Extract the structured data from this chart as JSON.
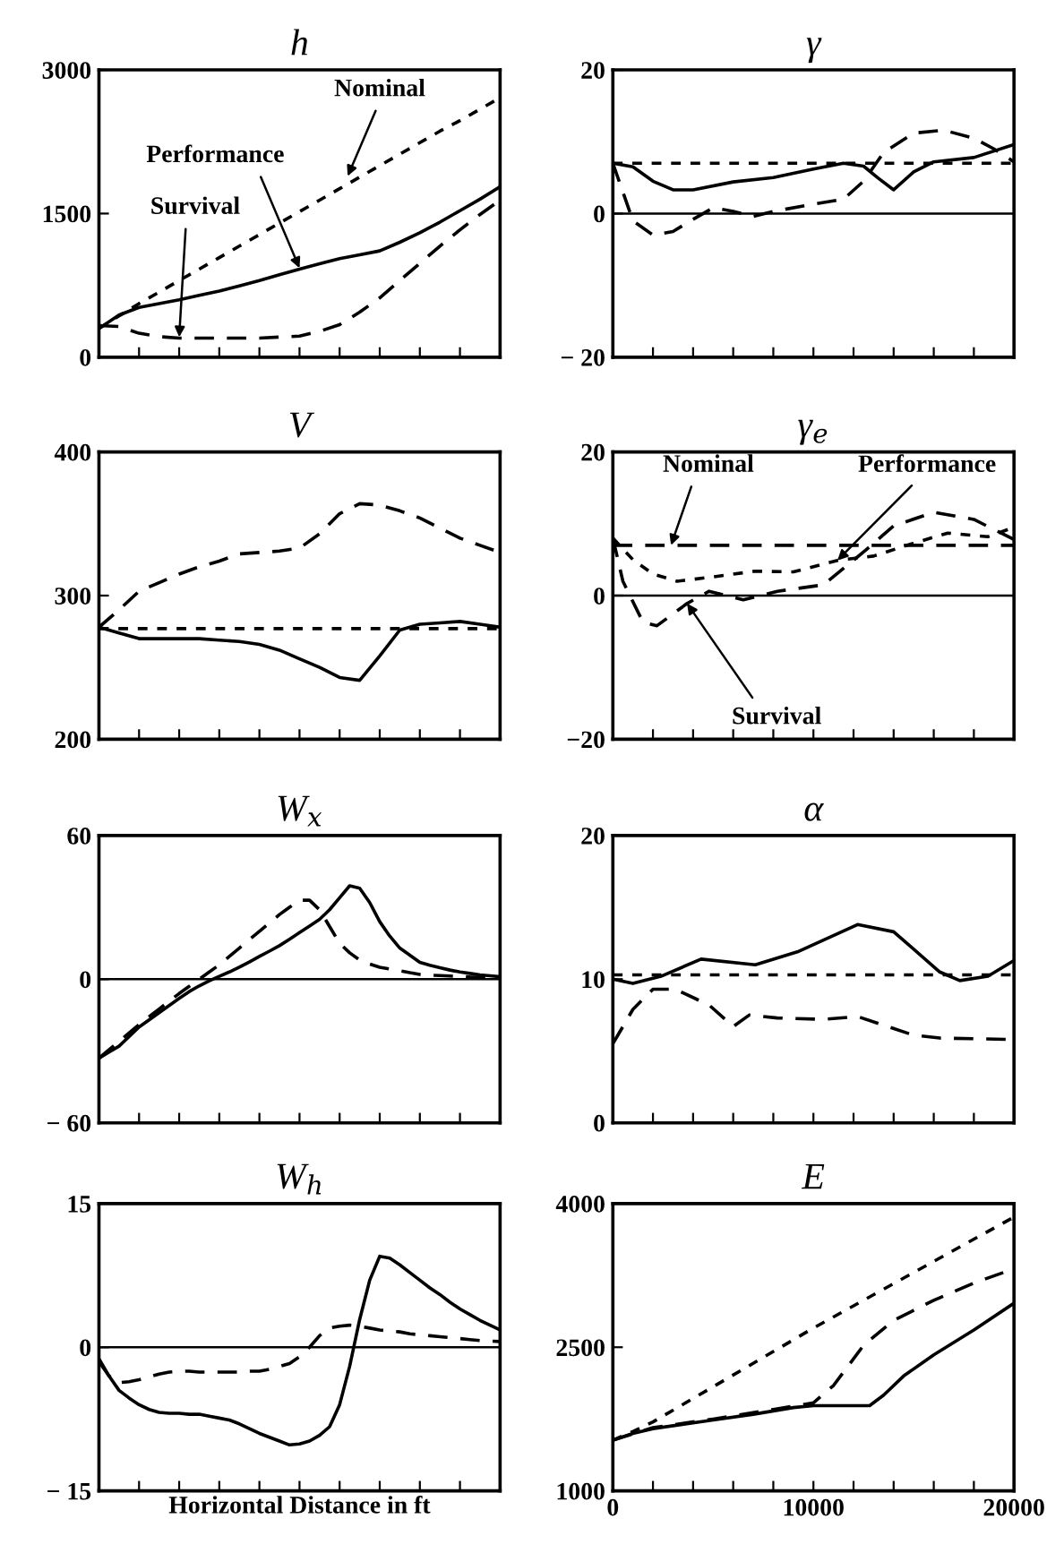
{
  "chart_data": [
    {
      "type": "line",
      "title": "h",
      "categories": [
        null,
        null,
        null,
        null,
        null,
        null,
        null,
        null,
        null,
        null,
        null,
        null,
        null,
        null,
        null,
        null,
        null,
        null,
        null,
        null,
        null
      ],
      "ylim": [
        0,
        3000
      ],
      "yticks": [
        0,
        1500,
        3000
      ],
      "tick_labels": "y",
      "series": [
        {
          "color": "#000000",
          "line_style": "dotted",
          "values": [
            300,
            430,
            560,
            680,
            800,
            920,
            1040,
            1160,
            1280,
            1400,
            1520,
            1640,
            1760,
            1880,
            2000,
            2120,
            2240,
            2360,
            2470,
            2590,
            2710
          ]
        },
        {
          "color": "#000000",
          "line_style": "solid",
          "values": [
            300,
            440,
            520,
            560,
            600,
            645,
            690,
            745,
            800,
            860,
            920,
            975,
            1030,
            1070,
            1110,
            1200,
            1300,
            1410,
            1530,
            1650,
            1780
          ]
        },
        {
          "color": "#000000",
          "line_style": "dashed",
          "values": [
            330,
            320,
            250,
            215,
            200,
            200,
            200,
            200,
            200,
            210,
            220,
            270,
            340,
            470,
            620,
            800,
            980,
            1160,
            1330,
            1490,
            1640
          ]
        }
      ],
      "annotations": [
        "Nominal",
        "Performance",
        "Survival"
      ]
    },
    {
      "type": "line",
      "title": "γ",
      "xlim": [
        0,
        20000
      ],
      "xticks": [
        {
          "value": 0,
          "label": null
        },
        {
          "value": 2000,
          "label": null
        },
        {
          "value": 4000,
          "label": null
        },
        {
          "value": 6000,
          "label": null
        },
        {
          "value": 8000,
          "label": null
        },
        {
          "value": 10000,
          "label": null
        },
        {
          "value": 12000,
          "label": null
        },
        {
          "value": 14000,
          "label": null
        },
        {
          "value": 16000,
          "label": null
        },
        {
          "value": 18000,
          "label": null
        },
        {
          "value": 20000,
          "label": null
        }
      ],
      "ylim": [
        -20,
        20
      ],
      "yticks": [
        {
          "value": -20,
          "label": "− 20"
        },
        0,
        20
      ],
      "tick_labels": "y",
      "ref_lines": [
        {
          "axis": "y",
          "value": 0,
          "color": "#000000"
        }
      ],
      "series": [
        {
          "color": "#000000",
          "line_style": "dotted",
          "x": [
            0,
            20000
          ],
          "values": [
            7,
            7
          ]
        },
        {
          "color": "#000000",
          "line_style": "solid",
          "x": [
            0,
            1000,
            2000,
            3000,
            4000,
            6000,
            8000,
            10000,
            11500,
            12500,
            13200,
            14000,
            15000,
            16000,
            18000,
            20000
          ],
          "values": [
            7,
            6.5,
            4.5,
            3.3,
            3.3,
            4.4,
            5,
            6.2,
            7,
            6.6,
            5,
            3.3,
            5.8,
            7.2,
            7.8,
            9.6
          ]
        },
        {
          "color": "#000000",
          "line_style": "dashed",
          "x": [
            0,
            500,
            1000,
            2000,
            3000,
            4000,
            5000,
            6000,
            7000,
            8000,
            10000,
            11500,
            12500,
            13500,
            15000,
            16500,
            18000,
            19000,
            20000
          ],
          "values": [
            7,
            3,
            -1,
            -3,
            -2.5,
            -0.8,
            0.8,
            0.3,
            -0.4,
            0.3,
            1.3,
            2,
            4.5,
            8.5,
            11.2,
            11.6,
            10.5,
            9,
            7.2
          ]
        }
      ]
    },
    {
      "type": "line",
      "title": "V",
      "categories": [
        null,
        null,
        null,
        null,
        null,
        null,
        null,
        null,
        null,
        null,
        null,
        null,
        null,
        null,
        null,
        null,
        null,
        null,
        null,
        null,
        null
      ],
      "ylim": [
        200,
        400
      ],
      "yticks": [
        200,
        300,
        400
      ],
      "tick_labels": "y",
      "series": [
        {
          "color": "#000000",
          "line_style": "dotted",
          "values": [
            277,
            277,
            277,
            277,
            277,
            277,
            277,
            277,
            277,
            277,
            277,
            277,
            277,
            277,
            277,
            277,
            277,
            277,
            277,
            277,
            277
          ]
        },
        {
          "color": "#000000",
          "line_style": "solid",
          "values": [
            278,
            274,
            270,
            270,
            270,
            270,
            269,
            268,
            266,
            262,
            256,
            250,
            243,
            241,
            258,
            276,
            280,
            281,
            282,
            280,
            278
          ]
        },
        {
          "color": "#000000",
          "line_style": "dashed",
          "values": [
            278,
            290,
            303,
            309,
            315,
            320,
            324,
            329,
            330,
            331,
            333,
            343,
            357,
            364,
            363,
            359,
            354,
            347,
            340,
            335,
            330
          ]
        }
      ]
    },
    {
      "type": "line",
      "title": "γ$_{e}$",
      "xlim": [
        0,
        20000
      ],
      "xticks": [
        {
          "value": 0,
          "label": null
        },
        {
          "value": 2000,
          "label": null
        },
        {
          "value": 4000,
          "label": null
        },
        {
          "value": 6000,
          "label": null
        },
        {
          "value": 8000,
          "label": null
        },
        {
          "value": 10000,
          "label": null
        },
        {
          "value": 12000,
          "label": null
        },
        {
          "value": 14000,
          "label": null
        },
        {
          "value": 16000,
          "label": null
        },
        {
          "value": 18000,
          "label": null
        },
        {
          "value": 20000,
          "label": null
        }
      ],
      "ylim": [
        -20,
        20
      ],
      "yticks": [
        {
          "value": -20,
          "label": "−20"
        },
        0,
        20
      ],
      "tick_labels": "y",
      "ref_lines": [
        {
          "axis": "y",
          "value": 0,
          "color": "#000000"
        }
      ],
      "series": [
        {
          "color": "#000000",
          "line_style": "dashed",
          "x": [
            0,
            20000
          ],
          "values": [
            7,
            7
          ]
        },
        {
          "color": "#000000",
          "line_style": "dotted",
          "x": [
            0,
            1000,
            2000,
            3200,
            5000,
            7100,
            9000,
            11200,
            13000,
            15000,
            16700,
            18700,
            20000
          ],
          "values": [
            8,
            5,
            3,
            2,
            2.6,
            3.4,
            3.3,
            4.9,
            5.5,
            7.3,
            8.7,
            8.2,
            9.5
          ]
        },
        {
          "color": "#000000",
          "line_style": "dashed",
          "x": [
            0,
            500,
            1500,
            2200,
            3700,
            4800,
            6500,
            8200,
            10500,
            12600,
            14000,
            16000,
            18000,
            20000
          ],
          "values": [
            8,
            2,
            -3.7,
            -4.2,
            -1.1,
            0.6,
            -0.6,
            0.6,
            1.5,
            6.3,
            9.7,
            11.6,
            10.6,
            7.8
          ]
        }
      ],
      "annotations": [
        {
          "text": "Nominal",
          "x": 2900,
          "y": 7
        },
        {
          "text": "Performance",
          "x": 11200,
          "y": 4.9
        },
        {
          "text": "Survival",
          "x": 3700,
          "y": -1.1
        }
      ]
    },
    {
      "type": "line",
      "title": "W$_{x}$",
      "categories": [
        null,
        null,
        null,
        null,
        null,
        null,
        null,
        null,
        null,
        null,
        null,
        null,
        null,
        null,
        null,
        null,
        null,
        null,
        null,
        null,
        null,
        null,
        null,
        null,
        null,
        null,
        null,
        null,
        null,
        null,
        null,
        null,
        null,
        null,
        null,
        null,
        null,
        null,
        null,
        null,
        null
      ],
      "ylim": [
        -60,
        60
      ],
      "yticks": [
        {
          "value": -60,
          "label": "− 60"
        },
        0,
        60
      ],
      "tick_labels": "y",
      "ref_lines": [
        {
          "axis": "y",
          "value": 0,
          "color": "#000000"
        }
      ],
      "series": [
        {
          "color": "#000000",
          "line_style": "solid",
          "values": [
            -33,
            -30.5,
            -28,
            -24,
            -20,
            -17,
            -14,
            -11,
            -8,
            -5.2,
            -2.8,
            -0.7,
            1.2,
            3,
            5,
            7.2,
            9.5,
            11.7,
            14,
            16.7,
            19.5,
            22.2,
            25,
            29,
            34,
            39,
            38,
            32,
            24,
            18,
            13,
            10,
            7,
            5.8,
            4.8,
            3.8,
            3,
            2.4,
            1.8,
            1.4,
            1
          ]
        },
        {
          "color": "#000000",
          "line_style": "dashed",
          "values": [
            -33,
            -29.5,
            -26,
            -22.5,
            -19,
            -15.7,
            -12.5,
            -9.2,
            -6,
            -3,
            0,
            3,
            6,
            9.5,
            13,
            16.5,
            20,
            23.5,
            27,
            30,
            33,
            33,
            29,
            22,
            15,
            11,
            8,
            6.3,
            5,
            4.2,
            3.5,
            2.7,
            2,
            1.7,
            1.5,
            1.3,
            1.1,
            0.9,
            0.8,
            0.6,
            0.5
          ]
        }
      ]
    },
    {
      "type": "line",
      "title": "α",
      "xlim": [
        0,
        20000
      ],
      "xticks": [
        {
          "value": 0,
          "label": null
        },
        {
          "value": 2000,
          "label": null
        },
        {
          "value": 4000,
          "label": null
        },
        {
          "value": 6000,
          "label": null
        },
        {
          "value": 8000,
          "label": null
        },
        {
          "value": 10000,
          "label": null
        },
        {
          "value": 12000,
          "label": null
        },
        {
          "value": 14000,
          "label": null
        },
        {
          "value": 16000,
          "label": null
        },
        {
          "value": 18000,
          "label": null
        },
        {
          "value": 20000,
          "label": null
        }
      ],
      "ylim": [
        0,
        20
      ],
      "yticks": [
        0,
        10,
        20
      ],
      "tick_labels": "y",
      "series": [
        {
          "color": "#000000",
          "line_style": "dotted",
          "x": [
            0,
            20000
          ],
          "values": [
            10.3,
            10.3
          ]
        },
        {
          "color": "#000000",
          "line_style": "solid",
          "x": [
            0,
            1000,
            2400,
            4400,
            7100,
            9200,
            12200,
            14000,
            16300,
            17300,
            18700,
            20000
          ],
          "values": [
            10,
            9.7,
            10.2,
            11.4,
            11,
            11.9,
            13.8,
            13.3,
            10.5,
            9.9,
            10.2,
            11.3
          ]
        },
        {
          "color": "#000000",
          "line_style": "dashed",
          "x": [
            0,
            1000,
            2000,
            3100,
            4800,
            6000,
            6800,
            8200,
            10500,
            12200,
            15000,
            16300,
            20000
          ],
          "values": [
            5.5,
            7.9,
            9.3,
            9.3,
            8.2,
            6.7,
            7.5,
            7.3,
            7.2,
            7.4,
            6.1,
            5.9,
            5.8
          ]
        }
      ]
    },
    {
      "type": "line",
      "title": "W$_{h}$",
      "xlabel": "Horizontal Distance in ft",
      "categories": [
        null,
        null,
        null,
        null,
        null,
        null,
        null,
        null,
        null,
        null,
        null,
        null,
        null,
        null,
        null,
        null,
        null,
        null,
        null,
        null,
        null,
        null,
        null,
        null,
        null,
        null,
        null,
        null,
        null,
        null,
        null,
        null,
        null,
        null,
        null,
        null,
        null,
        null,
        null,
        null,
        null
      ],
      "ylim": [
        -15,
        15
      ],
      "yticks": [
        {
          "value": -15,
          "label": "− 15"
        },
        0,
        15
      ],
      "tick_labels": "y",
      "ref_lines": [
        {
          "axis": "y",
          "value": 0,
          "color": "#000000"
        }
      ],
      "series": [
        {
          "color": "#000000",
          "line_style": "solid",
          "values": [
            -1.2,
            -3,
            -4.5,
            -5.3,
            -6,
            -6.5,
            -6.8,
            -6.9,
            -6.9,
            -7,
            -7,
            -7.2,
            -7.4,
            -7.6,
            -8,
            -8.5,
            -9,
            -9.4,
            -9.8,
            -10.2,
            -10.1,
            -9.8,
            -9.2,
            -8.3,
            -6,
            -2,
            2.9,
            7,
            9.5,
            9.3,
            8.6,
            7.8,
            7,
            6.2,
            5.5,
            4.7,
            4,
            3.4,
            2.8,
            2.3,
            1.8
          ]
        },
        {
          "color": "#000000",
          "line_style": "dashed",
          "values": [
            -1.5,
            -3,
            -3.7,
            -3.6,
            -3.4,
            -3.1,
            -2.8,
            -2.6,
            -2.5,
            -2.5,
            -2.6,
            -2.6,
            -2.6,
            -2.6,
            -2.6,
            -2.5,
            -2.5,
            -2.3,
            -2,
            -1.7,
            -1,
            0,
            1.2,
            2,
            2.2,
            2.3,
            2.2,
            2,
            1.8,
            1.7,
            1.6,
            1.4,
            1.3,
            1.2,
            1.1,
            1,
            0.9,
            0.8,
            0.7,
            0.65,
            0.6
          ]
        }
      ]
    },
    {
      "type": "line",
      "title": "E",
      "xlim": [
        0,
        20000
      ],
      "xticks": [
        0,
        {
          "value": 2000,
          "label": null
        },
        {
          "value": 4000,
          "label": null
        },
        {
          "value": 6000,
          "label": null
        },
        {
          "value": 8000,
          "label": null
        },
        10000,
        {
          "value": 12000,
          "label": null
        },
        {
          "value": 14000,
          "label": null
        },
        {
          "value": 16000,
          "label": null
        },
        {
          "value": 18000,
          "label": null
        },
        20000
      ],
      "ylim": [
        1000,
        4000
      ],
      "yticks": [
        1000,
        2500,
        4000
      ],
      "series": [
        {
          "color": "#000000",
          "line_style": "dotted",
          "x": [
            0,
            1000,
            2000,
            10000,
            20000
          ],
          "values": [
            1530,
            1620,
            1720,
            2700,
            3860
          ]
        },
        {
          "color": "#000000",
          "line_style": "solid",
          "x": [
            0,
            1000,
            2000,
            5000,
            7000,
            9000,
            10000,
            12800,
            13500,
            14500,
            16000,
            18000,
            20000
          ],
          "values": [
            1530,
            1600,
            1650,
            1740,
            1800,
            1870,
            1890,
            1890,
            2000,
            2200,
            2420,
            2680,
            2960
          ]
        },
        {
          "color": "#000000",
          "line_style": "dashed",
          "x": [
            0,
            2000,
            5000,
            8000,
            10000,
            11000,
            12500,
            14000,
            16000,
            18000,
            20000
          ],
          "values": [
            1530,
            1660,
            1750,
            1850,
            1920,
            2100,
            2520,
            2780,
            2990,
            3170,
            3320
          ]
        }
      ]
    }
  ]
}
